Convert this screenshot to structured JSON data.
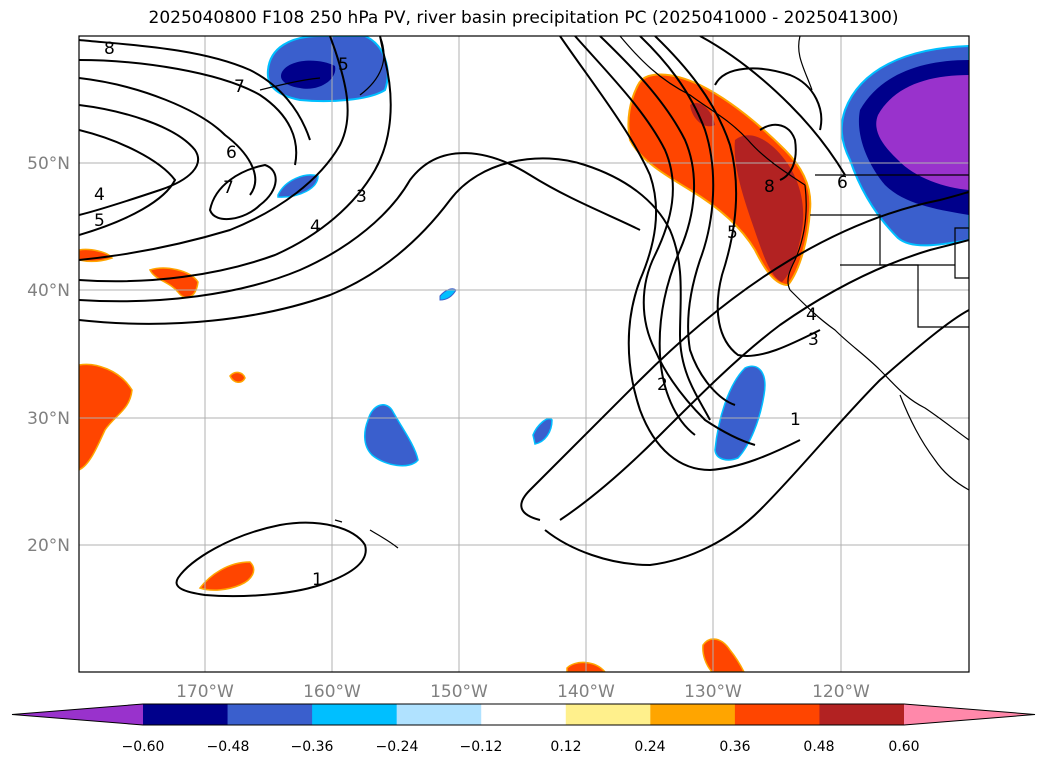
{
  "title": "2025040800 F108 250 hPa PV, river basin precipitation PC (2025041000 - 2025041300)",
  "lat_labels": [
    "50°N",
    "40°N",
    "30°N",
    "20°N"
  ],
  "lon_labels": [
    "170°W",
    "160°W",
    "150°W",
    "140°W",
    "130°W",
    "120°W"
  ],
  "contour_labels": [
    "8",
    "7",
    "6",
    "7",
    "4",
    "5",
    "5",
    "3",
    "4",
    "2",
    "1",
    "5",
    "8",
    "6",
    "4",
    "3",
    "1"
  ],
  "colorbar": {
    "ticks": [
      "−0.60",
      "−0.48",
      "−0.36",
      "−0.24",
      "−0.12",
      "0.12",
      "0.24",
      "0.36",
      "0.48",
      "0.60"
    ],
    "colors": [
      "#9932cc",
      "#00008b",
      "#3a5fcd",
      "#00bfff",
      "#b0e2ff",
      "#ffffff",
      "#fff08c",
      "#ffa500",
      "#ff4500",
      "#b22222",
      "#ff88aa"
    ]
  },
  "colors": {
    "contour": "#000000",
    "grid": "#b0b0b0",
    "coast": "#000000"
  }
}
